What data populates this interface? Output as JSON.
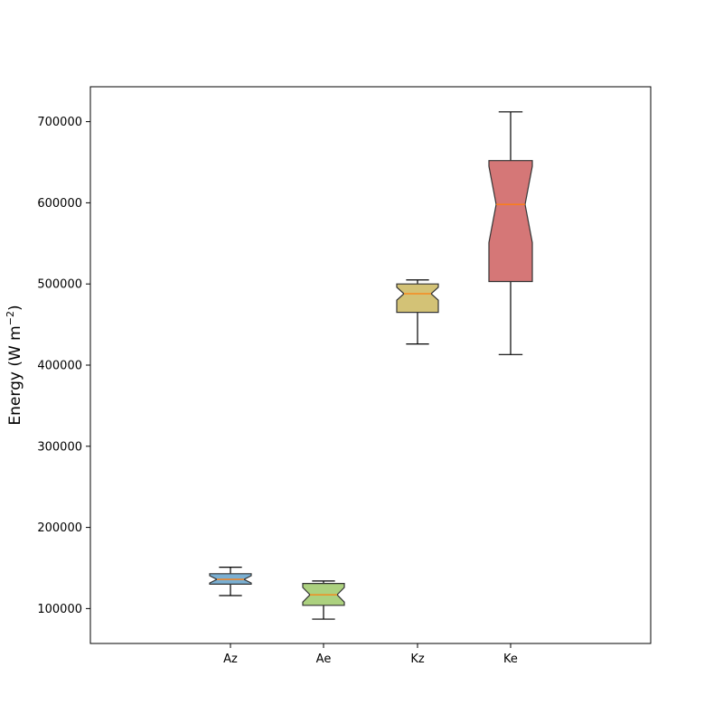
{
  "chart_data": {
    "type": "boxplot",
    "notched": true,
    "title": "",
    "xlabel": "",
    "ylabel": "Energy (W m",
    "ylabel_sup": "−2",
    "ylabel_close": ")",
    "categories": [
      "Az",
      "Ae",
      "Kz",
      "Ke"
    ],
    "ylim": [
      57000,
      743000
    ],
    "yticks": [
      100000,
      200000,
      300000,
      400000,
      500000,
      600000,
      700000
    ],
    "ytick_labels": [
      "100000",
      "200000",
      "300000",
      "400000",
      "500000",
      "600000",
      "700000"
    ],
    "grid": false,
    "boxes": [
      {
        "label": "Az",
        "whisker_low": 116000,
        "q1": 130000,
        "median": 136000,
        "q3": 143000,
        "whisker_high": 151000,
        "notch_low": 131500,
        "notch_high": 140500,
        "color": "#7aafd2"
      },
      {
        "label": "Ae",
        "whisker_low": 87000,
        "q1": 104000,
        "median": 117000,
        "q3": 131000,
        "whisker_high": 134000,
        "notch_low": 108000,
        "notch_high": 126000,
        "color": "#acd17f"
      },
      {
        "label": "Kz",
        "whisker_low": 426000,
        "q1": 465000,
        "median": 488000,
        "q3": 500000,
        "whisker_high": 505000,
        "notch_low": 480000,
        "notch_high": 496000,
        "color": "#d3c276"
      },
      {
        "label": "Ke",
        "whisker_low": 413000,
        "q1": 503000,
        "median": 598000,
        "q3": 652000,
        "whisker_high": 712000,
        "notch_low": 551000,
        "notch_high": 645000,
        "color": "#d57777"
      }
    ],
    "median_color": "#ff7f0e",
    "edge_color": "#333333"
  }
}
